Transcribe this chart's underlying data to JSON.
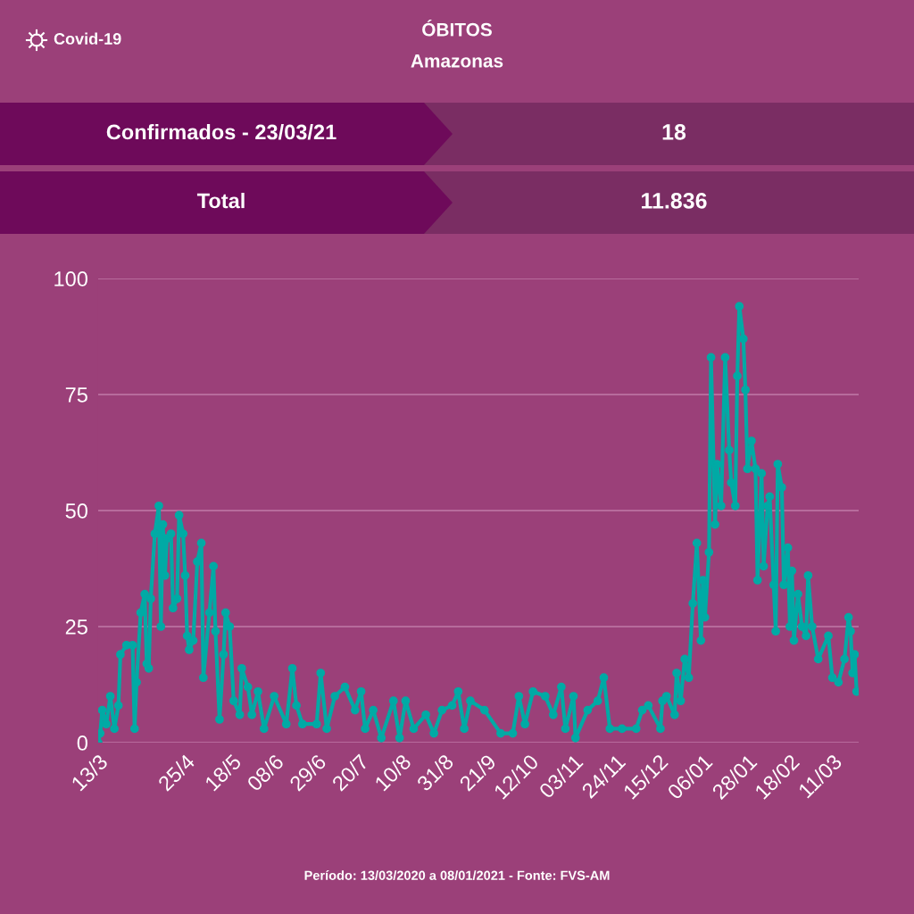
{
  "chart_data": [
    {
      "type": "line",
      "title": "ÓBITOS",
      "subtitle": "Amazonas",
      "annotations": [
        "Covid-19",
        "Período: 13/03/2020 a 08/01/2021 - Fonte: FVS-AM"
      ],
      "x": [
        "2020-03-13",
        "2020-03-14",
        "2020-03-15",
        "2020-03-17",
        "2020-03-19",
        "2020-03-21",
        "2020-03-23",
        "2020-03-24",
        "2020-03-27",
        "2020-03-30",
        "2020-03-31",
        "2020-04-01",
        "2020-04-03",
        "2020-04-05",
        "2020-04-06",
        "2020-04-07",
        "2020-04-08",
        "2020-04-10",
        "2020-04-12",
        "2020-04-13",
        "2020-04-14",
        "2020-04-15",
        "2020-04-16",
        "2020-04-18",
        "2020-04-19",
        "2020-04-21",
        "2020-04-22",
        "2020-04-24",
        "2020-04-25",
        "2020-04-26",
        "2020-04-27",
        "2020-04-29",
        "2020-05-01",
        "2020-05-03",
        "2020-05-04",
        "2020-05-07",
        "2020-05-09",
        "2020-05-10",
        "2020-05-12",
        "2020-05-14",
        "2020-05-15",
        "2020-05-17",
        "2020-05-19",
        "2020-05-22",
        "2020-05-23",
        "2020-05-26",
        "2020-05-28",
        "2020-05-31",
        "2020-06-03",
        "2020-06-08",
        "2020-06-14",
        "2020-06-17",
        "2020-06-19",
        "2020-06-22",
        "2020-06-29",
        "2020-07-01",
        "2020-07-04",
        "2020-07-08",
        "2020-07-13",
        "2020-07-18",
        "2020-07-21",
        "2020-07-23",
        "2020-07-27",
        "2020-07-31",
        "2020-08-06",
        "2020-08-09",
        "2020-08-12",
        "2020-08-16",
        "2020-08-22",
        "2020-08-26",
        "2020-08-30",
        "2020-09-04",
        "2020-09-07",
        "2020-09-10",
        "2020-09-13",
        "2020-09-20",
        "2020-09-28",
        "2020-10-04",
        "2020-10-07",
        "2020-10-10",
        "2020-10-14",
        "2020-10-20",
        "2020-10-24",
        "2020-10-28",
        "2020-10-30",
        "2020-11-03",
        "2020-11-04",
        "2020-11-10",
        "2020-11-15",
        "2020-11-18",
        "2020-11-21",
        "2020-11-27",
        "2020-12-04",
        "2020-12-07",
        "2020-12-10",
        "2020-12-16",
        "2020-12-17",
        "2020-12-19",
        "2020-12-23",
        "2020-12-24",
        "2020-12-26",
        "2020-12-28",
        "2020-12-30",
        "2021-01-01",
        "2021-01-03",
        "2021-01-05",
        "2021-01-06",
        "2021-01-07",
        "2021-01-09",
        "2021-01-10",
        "2021-01-12",
        "2021-01-13",
        "2021-01-15",
        "2021-01-17",
        "2021-01-19",
        "2021-01-20",
        "2021-01-22",
        "2021-01-23",
        "2021-01-24",
        "2021-01-26",
        "2021-01-27",
        "2021-01-28",
        "2021-01-30",
        "2021-02-01",
        "2021-02-02",
        "2021-02-04",
        "2021-02-05",
        "2021-02-07",
        "2021-02-08",
        "2021-02-10",
        "2021-02-11",
        "2021-02-12",
        "2021-02-14",
        "2021-02-15",
        "2021-02-17",
        "2021-02-18",
        "2021-02-19",
        "2021-02-20",
        "2021-02-22",
        "2021-02-24",
        "2021-02-26",
        "2021-02-27",
        "2021-03-01",
        "2021-03-04",
        "2021-03-09",
        "2021-03-11",
        "2021-03-14",
        "2021-03-17",
        "2021-03-19",
        "2021-03-20",
        "2021-03-21",
        "2021-03-22",
        "2021-03-23"
      ],
      "series": [
        {
          "color": "#00aaa5",
          "values": [
            0,
            2,
            7,
            4,
            10,
            3,
            8,
            19,
            21,
            21,
            3,
            13,
            28,
            32,
            17,
            16,
            31,
            45,
            51,
            25,
            47,
            36,
            44,
            45,
            29,
            31,
            49,
            45,
            36,
            23,
            20,
            22,
            39,
            43,
            14,
            28,
            38,
            24,
            5,
            19,
            28,
            25,
            9,
            6,
            16,
            12,
            6,
            11,
            3,
            10,
            4,
            16,
            8,
            4,
            4,
            15,
            3,
            10,
            12,
            7,
            11,
            3,
            7,
            1,
            9,
            1,
            9,
            3,
            6,
            2,
            7,
            8,
            11,
            3,
            9,
            7,
            2,
            2,
            10,
            4,
            11,
            10,
            6,
            12,
            3,
            10,
            1,
            7,
            9,
            14,
            3,
            3,
            3,
            7,
            8,
            3,
            9,
            10,
            6,
            15,
            9,
            18,
            14,
            30,
            43,
            22,
            35,
            27,
            41,
            83,
            47,
            60,
            51,
            83,
            63,
            56,
            51,
            79,
            94,
            87,
            76,
            59,
            65,
            59,
            35,
            58,
            38,
            51,
            53,
            34,
            24,
            60,
            55,
            34,
            42,
            25,
            37,
            22,
            32,
            25,
            23,
            36,
            25,
            18,
            23,
            14,
            13,
            18,
            27,
            24,
            15,
            19,
            11
          ]
        }
      ],
      "xlim": [
        "2020-03-13",
        "2021-03-24"
      ],
      "xticks": [
        {
          "value": "2020-03-13",
          "label": "13/3"
        },
        {
          "value": "2020-04-25",
          "label": "25/4"
        },
        {
          "value": "2020-05-18",
          "label": "18/5"
        },
        {
          "value": "2020-06-08",
          "label": "08/6"
        },
        {
          "value": "2020-06-29",
          "label": "29/6"
        },
        {
          "value": "2020-07-20",
          "label": "20/7"
        },
        {
          "value": "2020-08-10",
          "label": "10/8"
        },
        {
          "value": "2020-08-31",
          "label": "31/8"
        },
        {
          "value": "2020-09-21",
          "label": "21/9"
        },
        {
          "value": "2020-10-12",
          "label": "12/10"
        },
        {
          "value": "2020-11-03",
          "label": "03/11"
        },
        {
          "value": "2020-11-24",
          "label": "24/11"
        },
        {
          "value": "2020-12-15",
          "label": "15/12"
        },
        {
          "value": "2021-01-06",
          "label": "06/01"
        },
        {
          "value": "2021-01-28",
          "label": "28/01"
        },
        {
          "value": "2021-02-18",
          "label": "18/02"
        },
        {
          "value": "2021-03-11",
          "label": "11/03"
        }
      ],
      "ylim": [
        0,
        100
      ],
      "yticks": [
        0,
        25,
        50,
        75,
        100
      ],
      "grid": "y",
      "marker": "circle",
      "line_style": "solid"
    },
    {
      "type": "other",
      "annotations": [
        "Confirmados - 23/03/21",
        "18",
        "Total",
        "11.836"
      ]
    }
  ]
}
